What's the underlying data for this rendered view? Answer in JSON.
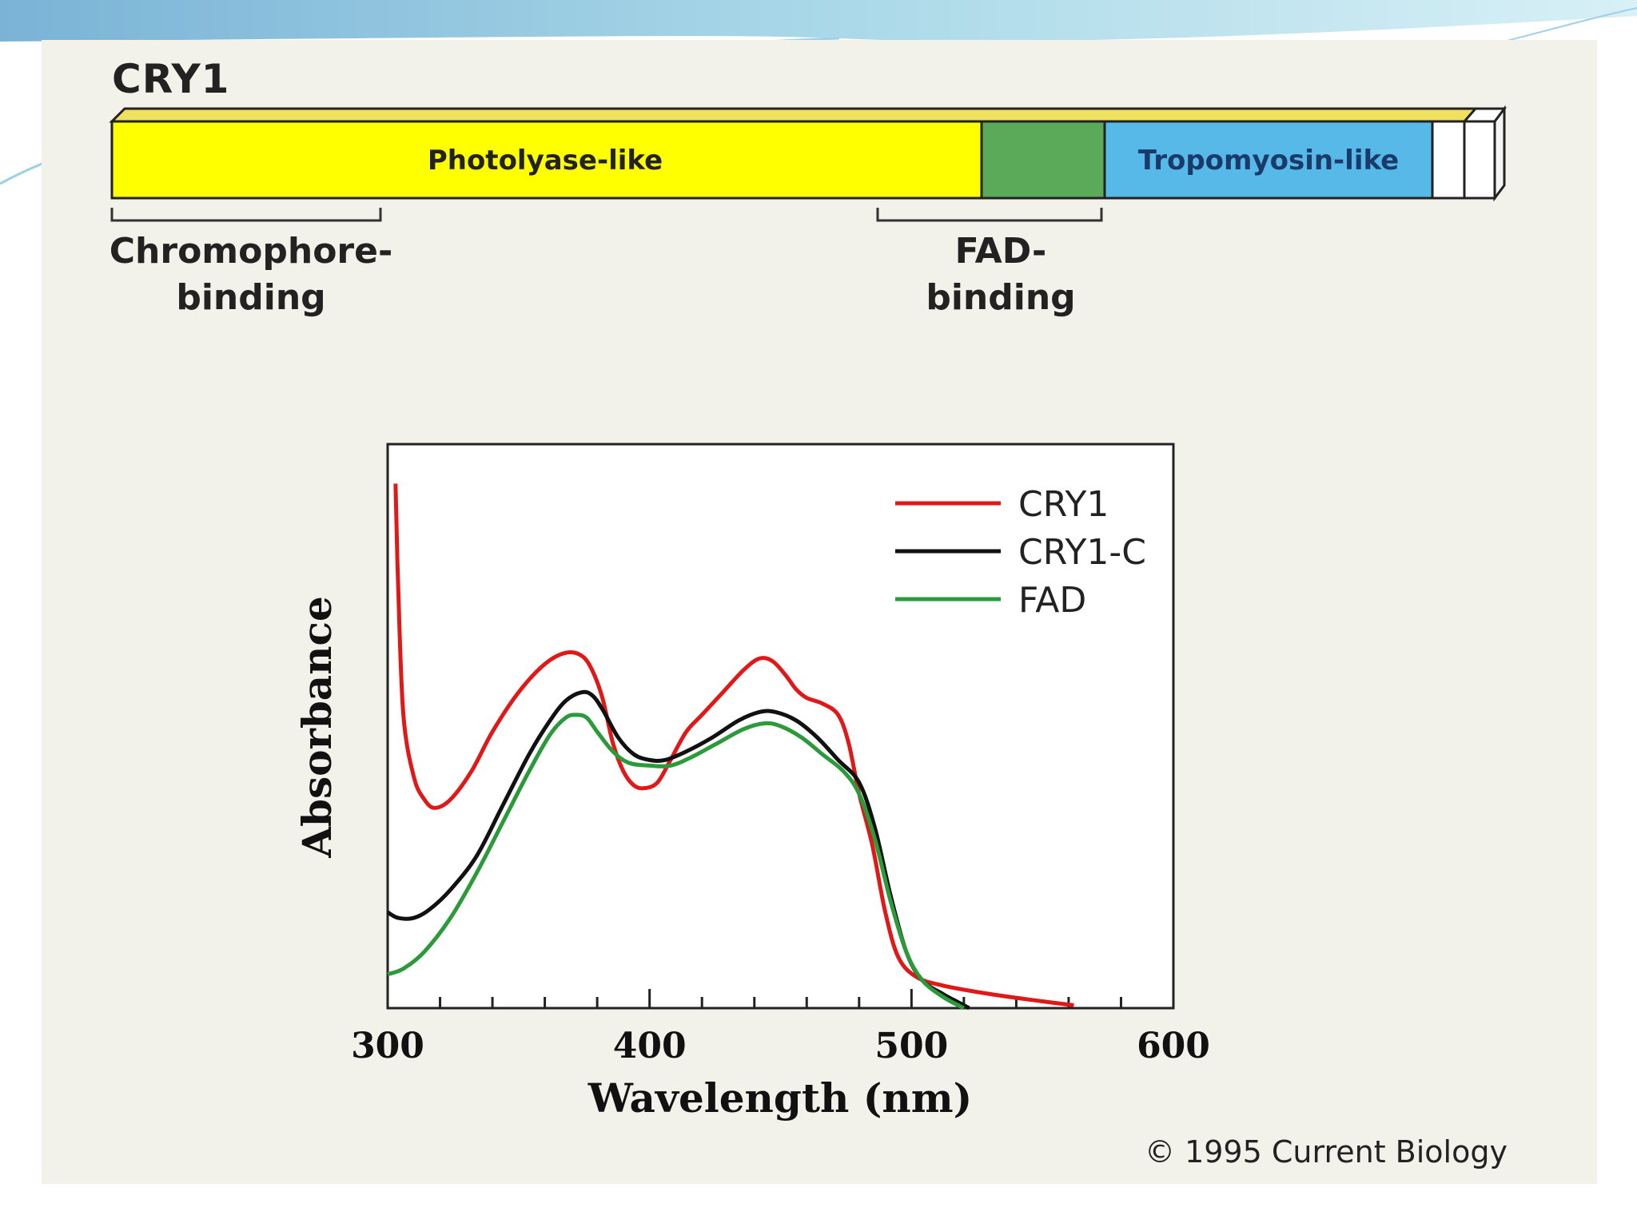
{
  "diagram": {
    "title": "CRY1",
    "segments": [
      {
        "label": "Photolyase-like",
        "color": "#ffff00"
      },
      {
        "label": "",
        "color": "#5aaa5a"
      },
      {
        "label": "Tropomyosin-like",
        "color": "#56b9e8"
      },
      {
        "label": "",
        "color": "#ffffff"
      }
    ],
    "bracket_labels": {
      "chromophore": "Chromophore-\nbinding",
      "fad": "FAD-\nbinding"
    }
  },
  "chart_data": {
    "type": "line",
    "xlabel": "Wavelength (nm)",
    "ylabel": "Absorbance",
    "xlim": [
      300,
      600
    ],
    "ylim": [
      0,
      1
    ],
    "xticks": [
      300,
      400,
      500,
      600
    ],
    "minor_tick_step": 20,
    "legend_position": "top-right",
    "series": [
      {
        "name": "CRY1",
        "color": "#e01818",
        "points": [
          [
            303,
            0.93
          ],
          [
            304,
            0.75
          ],
          [
            306,
            0.52
          ],
          [
            310,
            0.41
          ],
          [
            314,
            0.37
          ],
          [
            318,
            0.355
          ],
          [
            324,
            0.37
          ],
          [
            332,
            0.42
          ],
          [
            340,
            0.49
          ],
          [
            350,
            0.56
          ],
          [
            360,
            0.61
          ],
          [
            368,
            0.63
          ],
          [
            374,
            0.625
          ],
          [
            378,
            0.6
          ],
          [
            382,
            0.55
          ],
          [
            386,
            0.47
          ],
          [
            390,
            0.42
          ],
          [
            394,
            0.395
          ],
          [
            398,
            0.39
          ],
          [
            403,
            0.4
          ],
          [
            408,
            0.44
          ],
          [
            414,
            0.49
          ],
          [
            420,
            0.52
          ],
          [
            428,
            0.56
          ],
          [
            436,
            0.6
          ],
          [
            442,
            0.62
          ],
          [
            447,
            0.615
          ],
          [
            452,
            0.59
          ],
          [
            456,
            0.565
          ],
          [
            460,
            0.55
          ],
          [
            466,
            0.54
          ],
          [
            472,
            0.52
          ],
          [
            476,
            0.47
          ],
          [
            480,
            0.38
          ],
          [
            485,
            0.29
          ],
          [
            490,
            0.17
          ],
          [
            495,
            0.09
          ],
          [
            502,
            0.055
          ],
          [
            512,
            0.04
          ],
          [
            530,
            0.025
          ],
          [
            550,
            0.012
          ],
          [
            562,
            0.005
          ]
        ]
      },
      {
        "name": "CRY1-C",
        "color": "#111111",
        "points": [
          [
            300,
            0.17
          ],
          [
            304,
            0.16
          ],
          [
            310,
            0.16
          ],
          [
            316,
            0.175
          ],
          [
            324,
            0.21
          ],
          [
            334,
            0.27
          ],
          [
            344,
            0.36
          ],
          [
            354,
            0.45
          ],
          [
            362,
            0.51
          ],
          [
            368,
            0.545
          ],
          [
            374,
            0.56
          ],
          [
            378,
            0.555
          ],
          [
            382,
            0.53
          ],
          [
            388,
            0.48
          ],
          [
            394,
            0.45
          ],
          [
            400,
            0.44
          ],
          [
            406,
            0.44
          ],
          [
            414,
            0.455
          ],
          [
            424,
            0.48
          ],
          [
            434,
            0.51
          ],
          [
            442,
            0.525
          ],
          [
            448,
            0.525
          ],
          [
            456,
            0.51
          ],
          [
            464,
            0.48
          ],
          [
            472,
            0.44
          ],
          [
            480,
            0.4
          ],
          [
            486,
            0.32
          ],
          [
            492,
            0.2
          ],
          [
            498,
            0.1
          ],
          [
            504,
            0.05
          ],
          [
            512,
            0.025
          ],
          [
            518,
            0.01
          ],
          [
            522,
            0.0
          ]
        ]
      },
      {
        "name": "FAD",
        "color": "#2a9a3a",
        "points": [
          [
            300,
            0.06
          ],
          [
            306,
            0.07
          ],
          [
            314,
            0.1
          ],
          [
            324,
            0.16
          ],
          [
            334,
            0.24
          ],
          [
            344,
            0.33
          ],
          [
            354,
            0.42
          ],
          [
            362,
            0.485
          ],
          [
            368,
            0.515
          ],
          [
            372,
            0.52
          ],
          [
            376,
            0.515
          ],
          [
            380,
            0.49
          ],
          [
            386,
            0.455
          ],
          [
            392,
            0.435
          ],
          [
            400,
            0.43
          ],
          [
            408,
            0.43
          ],
          [
            416,
            0.445
          ],
          [
            426,
            0.47
          ],
          [
            436,
            0.495
          ],
          [
            444,
            0.505
          ],
          [
            450,
            0.5
          ],
          [
            458,
            0.48
          ],
          [
            466,
            0.45
          ],
          [
            474,
            0.42
          ],
          [
            480,
            0.38
          ],
          [
            486,
            0.3
          ],
          [
            492,
            0.19
          ],
          [
            498,
            0.1
          ],
          [
            504,
            0.05
          ],
          [
            512,
            0.02
          ],
          [
            520,
            0.0
          ]
        ]
      }
    ]
  },
  "copyright": "© 1995 Current Biology"
}
